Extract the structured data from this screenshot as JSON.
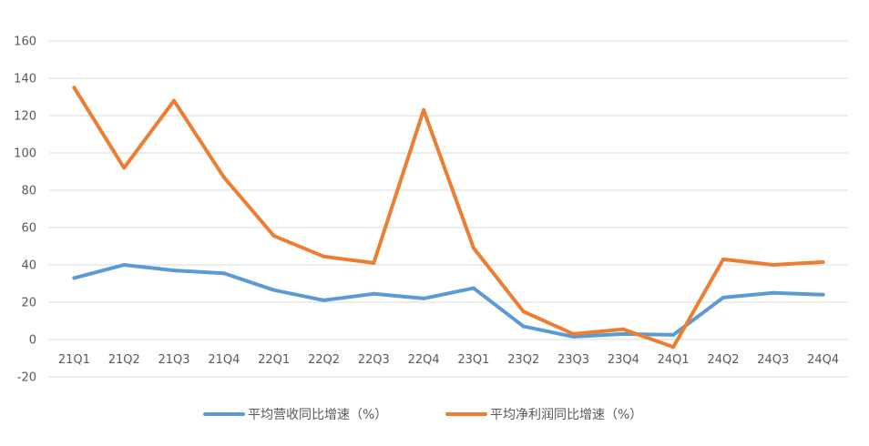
{
  "chart_data": {
    "type": "line",
    "categories": [
      "21Q1",
      "21Q2",
      "21Q3",
      "21Q4",
      "22Q1",
      "22Q2",
      "22Q3",
      "22Q4",
      "23Q1",
      "23Q2",
      "23Q3",
      "23Q4",
      "24Q1",
      "24Q2",
      "24Q3",
      "24Q4"
    ],
    "series": [
      {
        "name": "平均营收同比增速（%）",
        "color": "#5b9bd5",
        "values": [
          33,
          40,
          37,
          35.5,
          26.5,
          21,
          24.5,
          22,
          27.5,
          7,
          1.5,
          3,
          2.5,
          22.5,
          25,
          24
        ]
      },
      {
        "name": "平均净利润同比增速（%）",
        "color": "#ed7d31",
        "values": [
          135,
          92,
          128,
          87,
          55.5,
          44.5,
          41,
          123,
          49,
          15,
          3,
          5.5,
          -4,
          43,
          40,
          41.5
        ]
      }
    ],
    "ylim": [
      -20,
      160
    ],
    "yticks": [
      "-20",
      "0",
      "20",
      "40",
      "60",
      "80",
      "100",
      "120",
      "140",
      "160"
    ],
    "grid": true,
    "legend_position": "bottom",
    "title": "",
    "xlabel": "",
    "ylabel": ""
  }
}
